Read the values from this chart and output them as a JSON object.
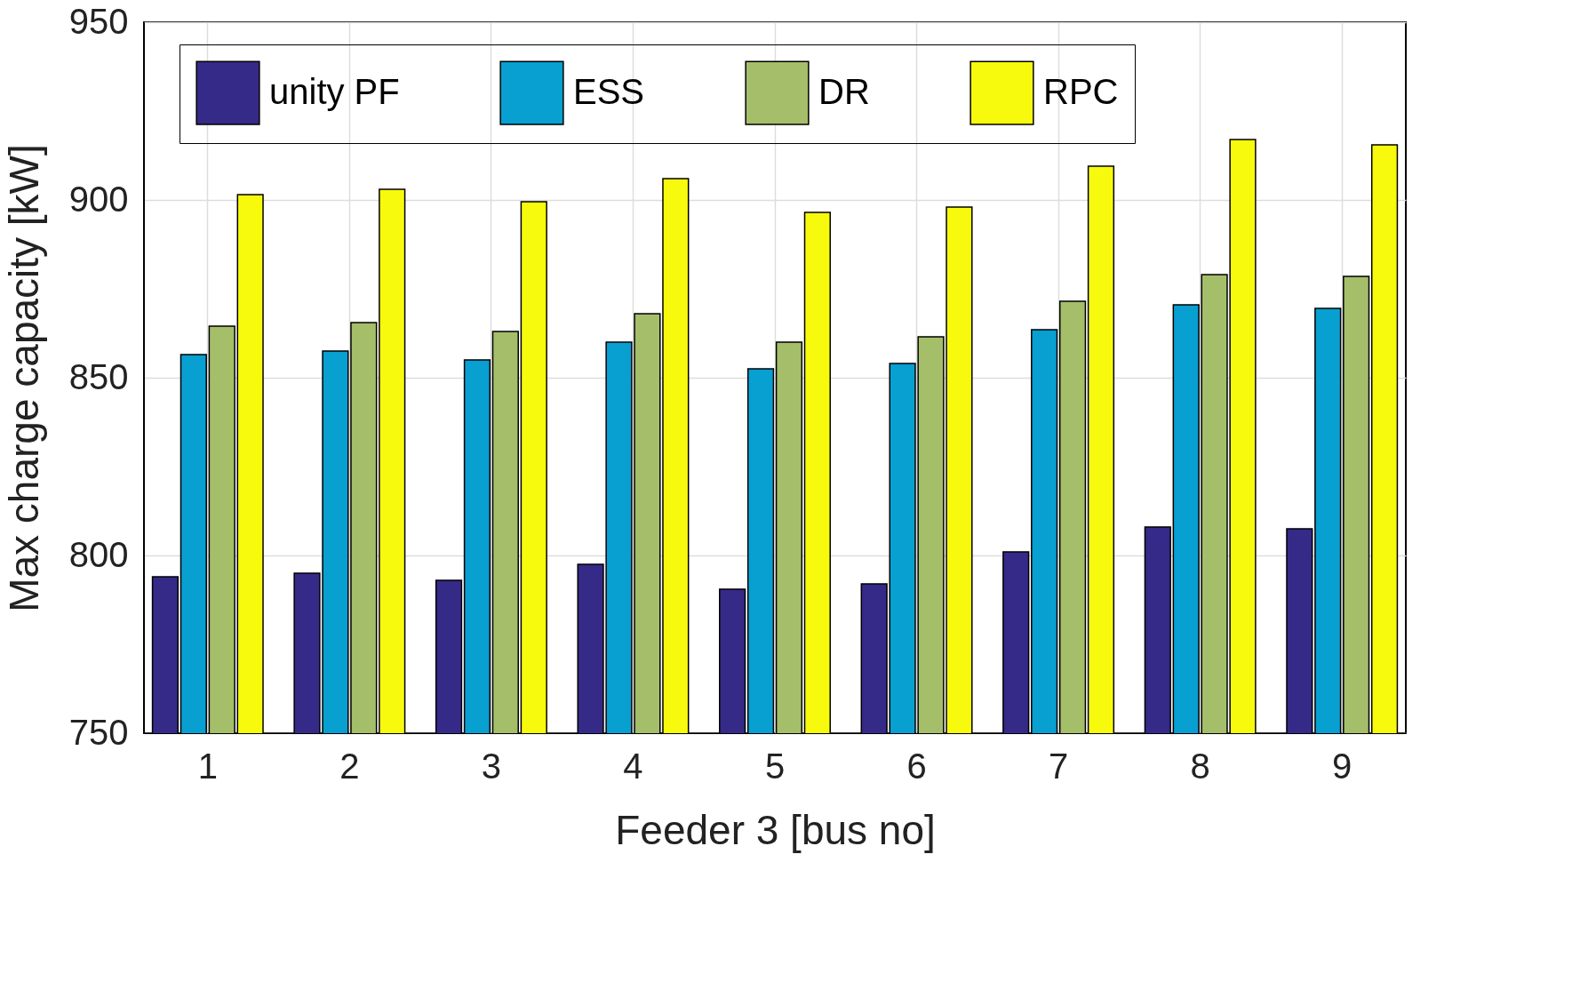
{
  "chart_data": {
    "type": "bar",
    "xlabel": "Feeder 3 [bus no]",
    "ylabel": "Max charge capacity [kW]",
    "categories": [
      "1",
      "2",
      "3",
      "4",
      "5",
      "6",
      "7",
      "8",
      "9"
    ],
    "series": [
      {
        "name": "unity PF",
        "color": "#352a87",
        "values": [
          794,
          795,
          793,
          797.5,
          790.5,
          792,
          801,
          808,
          807.5
        ]
      },
      {
        "name": "ESS",
        "color": "#089fd1",
        "values": [
          856.5,
          857.5,
          855,
          860,
          852.5,
          854,
          863.5,
          870.5,
          869.5
        ]
      },
      {
        "name": "DR",
        "color": "#a5be6a",
        "values": [
          864.5,
          865.5,
          863,
          868,
          860,
          861.5,
          871.5,
          879,
          878.5
        ]
      },
      {
        "name": "RPC",
        "color": "#f8fa0d",
        "values": [
          901.5,
          903,
          899.5,
          906,
          896.5,
          898,
          909.5,
          917,
          915.5
        ]
      }
    ],
    "ylim": [
      750,
      950
    ],
    "yticks": [
      750,
      800,
      850,
      900,
      950
    ],
    "grid": true,
    "legend": "top"
  }
}
